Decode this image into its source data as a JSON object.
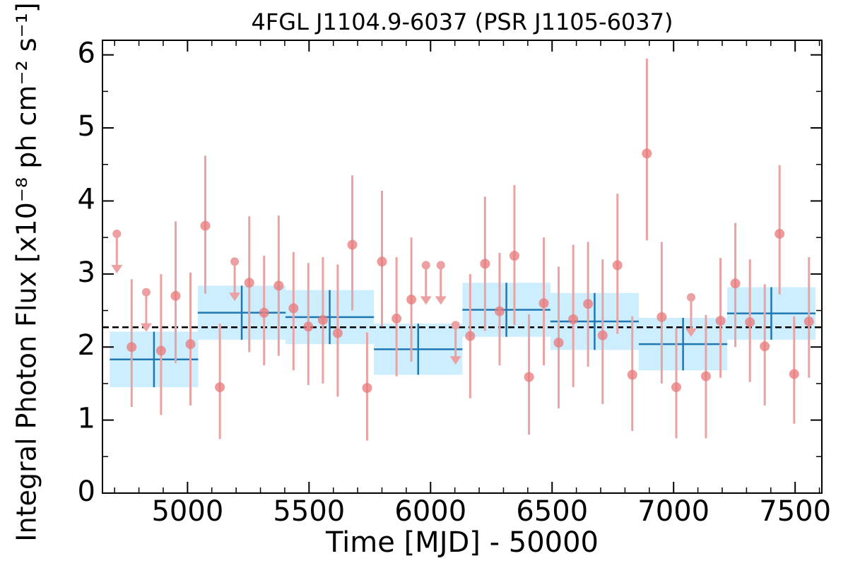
{
  "chart_data": {
    "type": "lightcurve",
    "title": "4FGL J1104.9-6037 (PSR J1105-6037)",
    "x_label": "Time [MJD] - 50000",
    "y_label": "Integral Photon Flux [x10⁻⁸ ph cm⁻² s⁻¹]",
    "xlim": [
      4650,
      7610
    ],
    "ylim": [
      0,
      6.2
    ],
    "xticks": [
      5000,
      5500,
      6000,
      6500,
      7000,
      7500
    ],
    "yticks": [
      0,
      1,
      2,
      3,
      4,
      5,
      6
    ],
    "mean_line": {
      "value": 2.27,
      "color": "#000000"
    },
    "bins": {
      "color": "#1f77b4",
      "fill": "#cdeefe",
      "x": [
        4862,
        5223,
        5585,
        5949,
        6312,
        6675,
        7039,
        7402
      ],
      "half_width": [
        182,
        181,
        182,
        182,
        181,
        182,
        182,
        182
      ],
      "values": [
        1.83,
        2.47,
        2.41,
        1.97,
        2.51,
        2.35,
        2.04,
        2.46
      ],
      "errors": [
        0.38,
        0.37,
        0.37,
        0.35,
        0.37,
        0.39,
        0.36,
        0.36
      ]
    },
    "points": {
      "color": "#e8787a",
      "error_color": "#e9a3a3",
      "x": [
        4770,
        4891,
        4951,
        5012,
        5073,
        5133,
        5254,
        5315,
        5375,
        5436,
        5497,
        5557,
        5618,
        5678,
        5739,
        5800,
        5860,
        5921,
        6163,
        6224,
        6284,
        6345,
        6405,
        6466,
        6527,
        6587,
        6648,
        6708,
        6769,
        6830,
        6890,
        6951,
        7011,
        7133,
        7193,
        7254,
        7314,
        7375,
        7436,
        7496,
        7557
      ],
      "values": [
        2.0,
        1.95,
        2.7,
        2.04,
        3.66,
        1.45,
        2.88,
        2.47,
        2.84,
        2.53,
        2.28,
        2.37,
        2.19,
        3.4,
        1.44,
        3.17,
        2.39,
        2.65,
        2.15,
        3.14,
        2.49,
        3.25,
        1.59,
        2.6,
        2.06,
        2.38,
        2.59,
        2.16,
        3.12,
        1.62,
        4.65,
        2.41,
        1.45,
        1.6,
        2.36,
        2.87,
        2.34,
        2.01,
        3.55,
        1.63,
        2.35
      ],
      "lower": [
        1.18,
        1.07,
        1.78,
        1.2,
        2.73,
        0.74,
        1.93,
        1.75,
        1.88,
        1.68,
        1.48,
        1.5,
        1.32,
        2.5,
        0.72,
        2.28,
        1.6,
        1.8,
        1.3,
        2.22,
        1.75,
        2.3,
        0.8,
        1.75,
        1.16,
        1.45,
        1.73,
        1.22,
        2.18,
        0.85,
        3.46,
        1.5,
        0.75,
        0.75,
        1.58,
        2.0,
        1.52,
        1.2,
        2.72,
        0.95,
        1.58
      ],
      "upper": [
        2.93,
        3.0,
        3.72,
        3.02,
        4.62,
        2.32,
        3.79,
        3.25,
        3.8,
        3.3,
        3.15,
        3.23,
        3.13,
        4.35,
        2.2,
        4.14,
        3.23,
        3.5,
        3.0,
        4.06,
        3.29,
        4.22,
        2.45,
        3.5,
        3.1,
        3.4,
        3.44,
        3.2,
        4.1,
        2.42,
        5.95,
        3.44,
        2.26,
        2.44,
        3.22,
        3.7,
        3.2,
        2.86,
        4.49,
        2.42,
        3.23
      ]
    },
    "upper_limits": {
      "color": "#eda0a2",
      "x": [
        4709,
        4830,
        5194,
        5981,
        6042,
        6103,
        7072
      ],
      "values": [
        3.55,
        2.75,
        3.17,
        3.12,
        3.12,
        2.3,
        2.68
      ]
    }
  }
}
